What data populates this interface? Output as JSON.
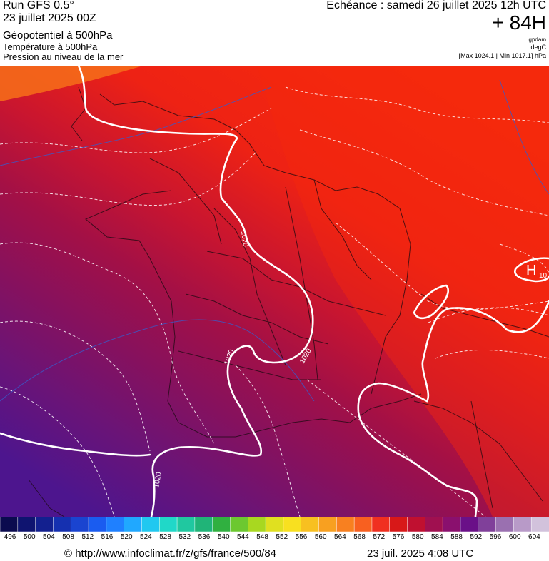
{
  "header": {
    "run_title": "Run GFS 0.5°",
    "run_date": "23 juillet 2025 00Z",
    "variable_main": "Géopotentiel à 500hPa",
    "variable_2": "Température à 500hPa",
    "variable_3": "Pression au niveau de la mer",
    "echeance": "Echéance : samedi 26 juillet 2025 12h UTC",
    "lead_time": "+ 84H",
    "unit_geopotential": "gpdam",
    "unit_temperature": "degC",
    "maxmin": "[Max 1024.1 | Min 1017.1] hPa"
  },
  "map": {
    "isobar_labels": [
      "1020",
      "1020",
      "1020",
      "1020"
    ],
    "high_marker": "H",
    "high_value": "10"
  },
  "scale": {
    "labels": [
      "496",
      "500",
      "504",
      "508",
      "512",
      "516",
      "520",
      "524",
      "528",
      "532",
      "536",
      "540",
      "544",
      "548",
      "552",
      "556",
      "560",
      "564",
      "568",
      "572",
      "576",
      "580",
      "584",
      "588",
      "592",
      "596",
      "600",
      "604"
    ],
    "colors": [
      "#0b0b4f",
      "#0f1470",
      "#13208f",
      "#1530b0",
      "#1a44d0",
      "#1a5cf0",
      "#1f80ff",
      "#20a8ff",
      "#20c8f0",
      "#20d8c8",
      "#20c8a0",
      "#20b478",
      "#30b040",
      "#6cc830",
      "#a8d820",
      "#e0e020",
      "#f8e020",
      "#f8c020",
      "#f8a020",
      "#f88020",
      "#f86020",
      "#f03020",
      "#d81818",
      "#c01030",
      "#a01050",
      "#8a106e",
      "#6a1088",
      "#80409a",
      "#9a70b0",
      "#b89ac8",
      "#d2c2dc"
    ]
  },
  "footer": {
    "url": "© http://www.infoclimat.fr/z/gfs/france/500/84",
    "timestamp": "23 juil. 2025  4:08 UTC"
  }
}
